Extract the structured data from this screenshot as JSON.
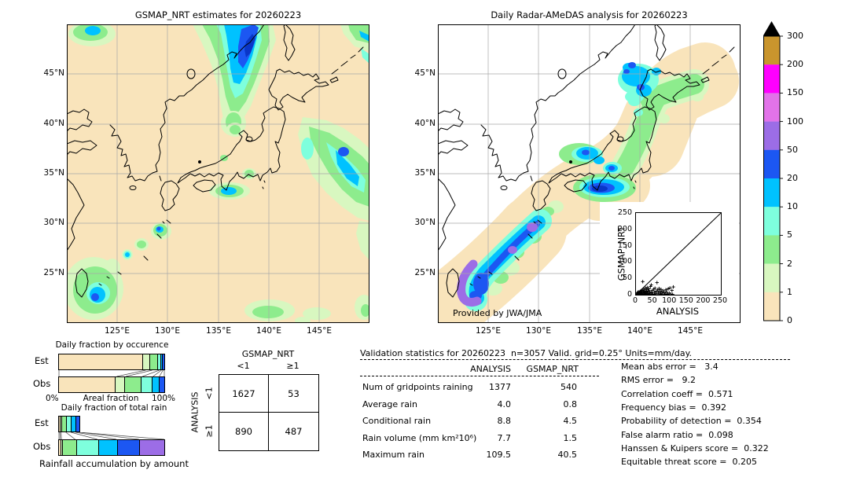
{
  "colorbar": {
    "tick_labels": [
      "300",
      "200",
      "150",
      "100",
      "50",
      "20",
      "10",
      "5",
      "2",
      "1",
      "0"
    ],
    "colors_top_to_bottom": [
      "#c9952d",
      "#ff00ff",
      "#e273e9",
      "#9c6de6",
      "#1c57f2",
      "#00c2ff",
      "#7effdd",
      "#8dec8d",
      "#d8f7c0",
      "#f9e4bb"
    ],
    "overflow_marker": "black-triangle"
  },
  "chart_data": [
    {
      "type": "heatmap",
      "name": "gsmap-map",
      "title": "GSMAP_NRT estimates for 20260223",
      "x_ticks": [
        "125°E",
        "130°E",
        "135°E",
        "140°E",
        "145°E"
      ],
      "y_ticks": [
        "45°N",
        "40°N",
        "35°N",
        "30°N",
        "25°N"
      ],
      "x_range": [
        "120°E",
        "150°E"
      ],
      "y_range": [
        "20°N",
        "50°N"
      ],
      "units": "mm/day",
      "description": "Satellite precipitation: rain band over Sea of Japan and Primorye, band east of Tohoku near 145E, cells south of Honshu, blob east of Taiwan, light rain areas at south edge"
    },
    {
      "type": "heatmap",
      "name": "radar-amedas-map",
      "title": "Daily Radar-AMeDAS analysis for 20260223",
      "x_ticks": [
        "125°E",
        "130°E",
        "135°E",
        "140°E",
        "145°E"
      ],
      "y_ticks": [
        "45°N",
        "40°N",
        "35°N",
        "30°N",
        "25°N"
      ],
      "x_range": [
        "120°E",
        "150°E"
      ],
      "y_range": [
        "20°N",
        "50°N"
      ],
      "units": "mm/day",
      "note": "Provided by JWA/JMA",
      "description": "Radar composite band along Japanese archipelago: heavy rain (purple/blue) over Okinawa-Amami line, blue cell south of Kii peninsula, cyan over San-in and western Hokkaido, green over Tohoku and eastern Hokkaido"
    },
    {
      "type": "bar",
      "name": "areal-fraction-bars",
      "title": "Daily fraction by occurence",
      "rows": [
        "Est",
        "Obs"
      ],
      "xlabel": "Areal fraction",
      "x_min_label": "0%",
      "x_max_label": "100%",
      "bins_mm_day": [
        "0-1",
        "1-2",
        "2-5",
        "5-10",
        "10-20",
        "20-50"
      ],
      "est_fractions": [
        0.823,
        0.062,
        0.068,
        0.02,
        0.015,
        0.012
      ],
      "obs_fractions": [
        0.549,
        0.087,
        0.157,
        0.1,
        0.06,
        0.047
      ]
    },
    {
      "type": "bar",
      "name": "total-rain-bars",
      "title": "Daily fraction of total rain",
      "rows": [
        "Est",
        "Obs"
      ],
      "bottom_label": "Rainfall accumulation by amount",
      "bins_mm_day": [
        "0-1",
        "1-2",
        "2-5",
        "5-10",
        "10-20",
        "20-50",
        "50-100"
      ],
      "est_fractions": [
        0.008,
        0.012,
        0.045,
        0.048,
        0.046,
        0.038
      ],
      "obs_fractions": [
        0.012,
        0.012,
        0.13,
        0.21,
        0.18,
        0.215,
        0.241
      ]
    },
    {
      "type": "table",
      "name": "contingency-table",
      "col_header": "GSMAP_NRT",
      "row_header": "ANALYSIS",
      "col_labels": [
        "<1",
        "≥1"
      ],
      "row_labels": [
        "<1",
        "≥1"
      ],
      "values": [
        [
          "1627",
          "53"
        ],
        [
          "890",
          "487"
        ]
      ]
    },
    {
      "type": "table",
      "name": "validation-stats",
      "title": "Validation statistics for 20260223  n=3057 Valid. grid=0.25° Units=mm/day.",
      "columns": [
        "ANALYSIS",
        "GSMAP_NRT"
      ],
      "rows": [
        {
          "label": "Num of gridpoints raining",
          "values": [
            "1377",
            "540"
          ]
        },
        {
          "label": "Average rain",
          "values": [
            "4.0",
            "0.8"
          ]
        },
        {
          "label": "Conditional rain",
          "values": [
            "8.8",
            "4.5"
          ]
        },
        {
          "label": "Rain volume (mm km²10⁶)",
          "values": [
            "7.7",
            "1.5"
          ]
        },
        {
          "label": "Maximum rain",
          "values": [
            "109.5",
            "40.5"
          ]
        }
      ]
    },
    {
      "type": "table",
      "name": "skill-scores",
      "rows": [
        {
          "label": "Mean abs error",
          "value": "  3.4"
        },
        {
          "label": "RMS error",
          "value": "  9.2"
        },
        {
          "label": "Correlation coeff",
          "value": " 0.571"
        },
        {
          "label": "Frequency bias",
          "value": " 0.392"
        },
        {
          "label": "Probability of detection",
          "value": " 0.354"
        },
        {
          "label": "False alarm ratio",
          "value": " 0.098"
        },
        {
          "label": "Hanssen & Kuipers score",
          "value": " 0.322"
        },
        {
          "label": "Equitable threat score",
          "value": " 0.205"
        }
      ]
    },
    {
      "type": "scatter",
      "name": "analysis-vs-gsmap-inset",
      "xlabel": "ANALYSIS",
      "ylabel": "GSMAP_NRT",
      "xlim": [
        0,
        250
      ],
      "ylim": [
        0,
        250
      ],
      "ticks": [
        "0",
        "50",
        "100",
        "150",
        "200",
        "250"
      ],
      "diagonal": true,
      "marker": "+",
      "points": [
        [
          2,
          1
        ],
        [
          3,
          3
        ],
        [
          5,
          1
        ],
        [
          5,
          6
        ],
        [
          6,
          2
        ],
        [
          7,
          9
        ],
        [
          8,
          4
        ],
        [
          9,
          1
        ],
        [
          10,
          7
        ],
        [
          11,
          3
        ],
        [
          12,
          10
        ],
        [
          13,
          2
        ],
        [
          14,
          6
        ],
        [
          15,
          12
        ],
        [
          16,
          1
        ],
        [
          17,
          8
        ],
        [
          18,
          4
        ],
        [
          19,
          14
        ],
        [
          20,
          40
        ],
        [
          21,
          2
        ],
        [
          22,
          9
        ],
        [
          23,
          17
        ],
        [
          24,
          5
        ],
        [
          25,
          12
        ],
        [
          26,
          1
        ],
        [
          27,
          7
        ],
        [
          28,
          20
        ],
        [
          29,
          3
        ],
        [
          30,
          10
        ],
        [
          31,
          16
        ],
        [
          32,
          2
        ],
        [
          33,
          8
        ],
        [
          34,
          22
        ],
        [
          35,
          5
        ],
        [
          36,
          12
        ],
        [
          38,
          18
        ],
        [
          40,
          3
        ],
        [
          41,
          9
        ],
        [
          43,
          25
        ],
        [
          45,
          30
        ],
        [
          46,
          6
        ],
        [
          48,
          13
        ],
        [
          50,
          2
        ],
        [
          52,
          17
        ],
        [
          54,
          8
        ],
        [
          56,
          20
        ],
        [
          58,
          4
        ],
        [
          60,
          11
        ],
        [
          62,
          37
        ],
        [
          64,
          15
        ],
        [
          66,
          7
        ],
        [
          68,
          19
        ],
        [
          70,
          10
        ],
        [
          72,
          3
        ],
        [
          74,
          16
        ],
        [
          76,
          8
        ],
        [
          78,
          2
        ],
        [
          80,
          12
        ],
        [
          83,
          6
        ],
        [
          85,
          2
        ],
        [
          88,
          15
        ],
        [
          90,
          8
        ],
        [
          93,
          2
        ],
        [
          95,
          18
        ],
        [
          98,
          5
        ],
        [
          100,
          21
        ],
        [
          103,
          2
        ],
        [
          106,
          13
        ],
        [
          108,
          1
        ],
        [
          110,
          24
        ],
        [
          55,
          1
        ],
        [
          47,
          1
        ],
        [
          38,
          1
        ],
        [
          29,
          1
        ],
        [
          20,
          1
        ],
        [
          12,
          1
        ],
        [
          7,
          0
        ],
        [
          3,
          0
        ],
        [
          65,
          2
        ],
        [
          73,
          1
        ],
        [
          86,
          1
        ],
        [
          94,
          1
        ]
      ]
    }
  ]
}
